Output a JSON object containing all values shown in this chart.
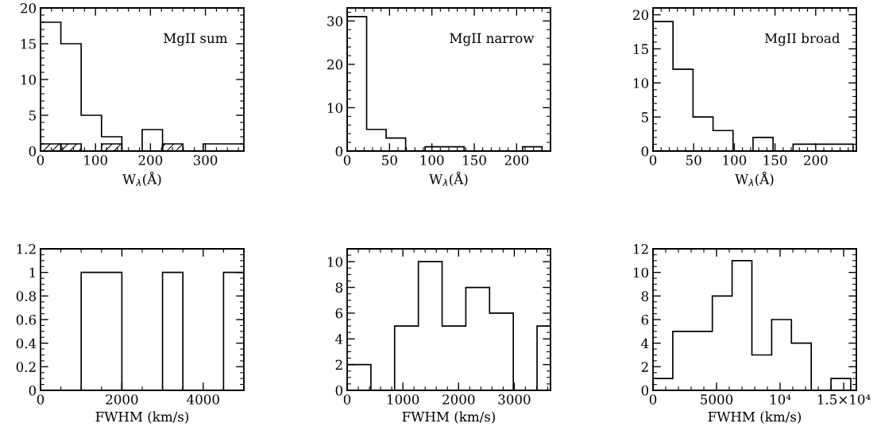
{
  "chart_data": [
    {
      "type": "histogram",
      "xlabel": "W$_{λ}$(Å)",
      "annotations": [
        "MgII sum"
      ],
      "bins": [
        0,
        37,
        74,
        111,
        148,
        185,
        222,
        259,
        296,
        333,
        370
      ],
      "xlim": [
        0,
        370
      ],
      "xticks": [
        0,
        100,
        200,
        300
      ],
      "ylim": [
        0,
        20
      ],
      "yticks": [
        0,
        5,
        10,
        15,
        20
      ],
      "series": [
        {
          "color": "#000000",
          "values": [
            18,
            15,
            5,
            2,
            0,
            3,
            0,
            0,
            1,
            1
          ]
        },
        {
          "color": "#000000",
          "values": [
            1,
            1,
            0,
            1,
            0,
            0,
            1,
            0,
            0,
            0
          ]
        }
      ]
    },
    {
      "type": "histogram",
      "xlabel": "W$_{λ}$(Å)",
      "annotations": [
        "MgII narrow"
      ],
      "bins": [
        0,
        23,
        46,
        69,
        92,
        115,
        138,
        161,
        184,
        207,
        230
      ],
      "xlim": [
        0,
        240
      ],
      "xticks": [
        0,
        50,
        100,
        150,
        200
      ],
      "ylim": [
        0,
        33
      ],
      "yticks": [
        0,
        10,
        20,
        30
      ],
      "series": [
        {
          "color": "#000000",
          "values": [
            31,
            5,
            3,
            0,
            1,
            1,
            0,
            0,
            0,
            1
          ]
        }
      ]
    },
    {
      "type": "histogram",
      "xlabel": "W$_{λ}$(Å)",
      "annotations": [
        "MgII broad"
      ],
      "bins": [
        0,
        24.6,
        49.2,
        73.8,
        98.4,
        123,
        147.6,
        172.2,
        196.8,
        221.4,
        246
      ],
      "xlim": [
        0,
        250
      ],
      "xticks": [
        0,
        50,
        100,
        150,
        200
      ],
      "ylim": [
        0,
        21
      ],
      "yticks": [
        0,
        5,
        10,
        15,
        20
      ],
      "series": [
        {
          "color": "#000000",
          "values": [
            19,
            12,
            5,
            3,
            0,
            2,
            0,
            1,
            1,
            1
          ]
        }
      ]
    },
    {
      "type": "histogram",
      "xlabel": "FWHM (km/s)",
      "bins": [
        0,
        500,
        1000,
        1500,
        2000,
        2500,
        3000,
        3500,
        4000,
        4500,
        5000
      ],
      "xlim": [
        0,
        5000
      ],
      "xticks": [
        0,
        2000,
        4000
      ],
      "ylim": [
        0,
        1.2
      ],
      "yticks": [
        0,
        0.2,
        0.4,
        0.6,
        0.8,
        {
          "value": 1,
          "label": "1"
        },
        1.2
      ],
      "series": [
        {
          "color": "#000000",
          "values": [
            0,
            0,
            1,
            1,
            0,
            0,
            1,
            0,
            0,
            1
          ]
        }
      ]
    },
    {
      "type": "histogram",
      "xlabel": "FWHM (km/s)",
      "bins": [
        0,
        426,
        852,
        1278,
        1704,
        2130,
        2556,
        2982,
        3408,
        3650
      ],
      "xlim": [
        0,
        3650
      ],
      "xticks": [
        0,
        1000,
        2000,
        3000
      ],
      "ylim": [
        0,
        11
      ],
      "yticks": [
        0,
        2,
        4,
        6,
        8,
        10
      ],
      "series": [
        {
          "color": "#000000",
          "values": [
            2,
            0,
            5,
            10,
            5,
            8,
            6,
            0,
            5
          ]
        }
      ]
    },
    {
      "type": "histogram",
      "xlabel": "FWHM (km/s)",
      "bins": [
        0,
        1556,
        3112,
        4668,
        6224,
        7780,
        9336,
        10892,
        12448,
        14004,
        15560
      ],
      "xlim": [
        0,
        16000
      ],
      "xticks": [
        0,
        5000,
        {
          "value": 10000,
          "label": "10⁴"
        },
        {
          "value": 15000,
          "label": "1.5×10⁴"
        }
      ],
      "ylim": [
        0,
        12
      ],
      "yticks": [
        0,
        2,
        4,
        6,
        8,
        10,
        12
      ],
      "series": [
        {
          "color": "#000000",
          "values": [
            1,
            5,
            5,
            8,
            11,
            3,
            6,
            4,
            0,
            1
          ]
        }
      ]
    }
  ]
}
